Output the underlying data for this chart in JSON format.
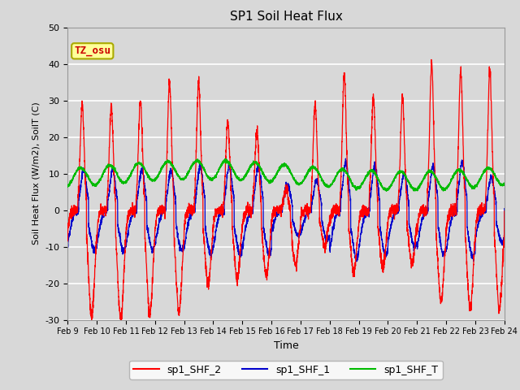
{
  "title": "SP1 Soil Heat Flux",
  "xlabel": "Time",
  "ylabel": "Soil Heat Flux (W/m2), SoilT (C)",
  "ylim": [
    -30,
    50
  ],
  "xlim": [
    0,
    15
  ],
  "background_color": "#d8d8d8",
  "plot_bg_color": "#d8d8d8",
  "grid_color": "#ffffff",
  "line_colors": {
    "shf2": "#ff0000",
    "shf1": "#0000cc",
    "shft": "#00bb00"
  },
  "legend_labels": [
    "sp1_SHF_2",
    "sp1_SHF_1",
    "sp1_SHF_T"
  ],
  "annotation_text": "TZ_osu",
  "annotation_color": "#cc0000",
  "annotation_bg": "#ffff99",
  "annotation_border": "#aaaa00",
  "xtick_labels": [
    "Feb 9",
    "Feb 10",
    "Feb 11",
    "Feb 12",
    "Feb 13",
    "Feb 14",
    "Feb 15",
    "Feb 16",
    "Feb 17",
    "Feb 18",
    "Feb 19",
    "Feb 20",
    "Feb 21",
    "Feb 22",
    "Feb 23",
    "Feb 24"
  ],
  "ytick_values": [
    -30,
    -20,
    -10,
    0,
    10,
    20,
    30,
    40,
    50
  ]
}
